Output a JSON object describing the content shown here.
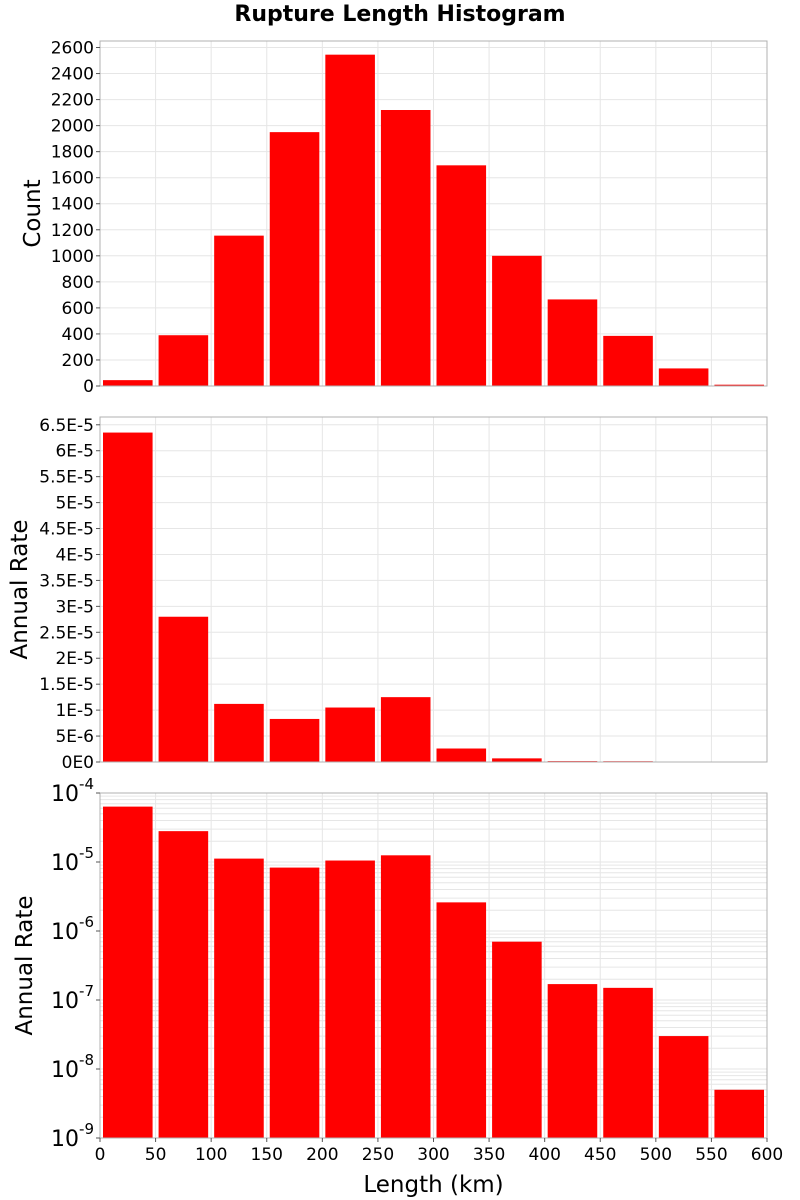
{
  "chart_data": [
    {
      "type": "bar",
      "title": "Rupture Length Histogram",
      "xlabel": "",
      "ylabel": "Count",
      "xlim": [
        0,
        600
      ],
      "ylim": [
        0,
        2650
      ],
      "bin_width": 50,
      "x": [
        25,
        75,
        125,
        175,
        225,
        275,
        325,
        375,
        425,
        475,
        525,
        575
      ],
      "values": [
        45,
        390,
        1155,
        1950,
        2545,
        2120,
        1695,
        1000,
        665,
        385,
        135,
        10
      ],
      "yticks": [
        0,
        200,
        400,
        600,
        800,
        1000,
        1200,
        1400,
        1600,
        1800,
        2000,
        2200,
        2400,
        2600
      ],
      "ytick_labels": [
        "0",
        "200",
        "400",
        "600",
        "800",
        "1000",
        "1200",
        "1400",
        "1600",
        "1800",
        "2000",
        "2200",
        "2400",
        "2600"
      ],
      "grid": true,
      "color": "#ff0000"
    },
    {
      "type": "bar",
      "xlabel": "",
      "ylabel": "Annual Rate",
      "xlim": [
        0,
        600
      ],
      "ylim": [
        0,
        6.65e-05
      ],
      "bin_width": 50,
      "x": [
        25,
        75,
        125,
        175,
        225,
        275,
        325,
        375,
        425,
        475,
        525,
        575
      ],
      "values": [
        6.35e-05,
        2.8e-05,
        1.12e-05,
        8.3e-06,
        1.05e-05,
        1.25e-05,
        2.6e-06,
        7e-07,
        1.7e-07,
        1.5e-07,
        3e-08,
        5e-09
      ],
      "yticks": [
        0,
        5e-06,
        1e-05,
        1.5e-05,
        2e-05,
        2.5e-05,
        3e-05,
        3.5e-05,
        4e-05,
        4.5e-05,
        5e-05,
        5.5e-05,
        6e-05,
        6.5e-05
      ],
      "ytick_labels": [
        "0E0",
        "5E-6",
        "1E-5",
        "1.5E-5",
        "2E-5",
        "2.5E-5",
        "3E-5",
        "3.5E-5",
        "4E-5",
        "4.5E-5",
        "5E-5",
        "5.5E-5",
        "6E-5",
        "6.5E-5"
      ],
      "grid": true,
      "color": "#ff0000"
    },
    {
      "type": "bar",
      "xlabel": "Length (km)",
      "ylabel": "Annual Rate",
      "yscale": "log",
      "xlim": [
        0,
        600
      ],
      "ylim": [
        1e-09,
        0.0001
      ],
      "bin_width": 50,
      "x": [
        25,
        75,
        125,
        175,
        225,
        275,
        325,
        375,
        425,
        475,
        525,
        575
      ],
      "values": [
        6.35e-05,
        2.8e-05,
        1.12e-05,
        8.3e-06,
        1.05e-05,
        1.25e-05,
        2.6e-06,
        7e-07,
        1.7e-07,
        1.5e-07,
        3e-08,
        5e-09
      ],
      "ytick_exponents": [
        "-9",
        "-8",
        "-7",
        "-6",
        "-5",
        "-4"
      ],
      "ytick_base": "10",
      "xticks": [
        0,
        50,
        100,
        150,
        200,
        250,
        300,
        350,
        400,
        450,
        500,
        550,
        600
      ],
      "xtick_labels": [
        "0",
        "50",
        "100",
        "150",
        "200",
        "250",
        "300",
        "350",
        "400",
        "450",
        "500",
        "550",
        "600"
      ],
      "grid": true,
      "color": "#ff0000"
    }
  ]
}
